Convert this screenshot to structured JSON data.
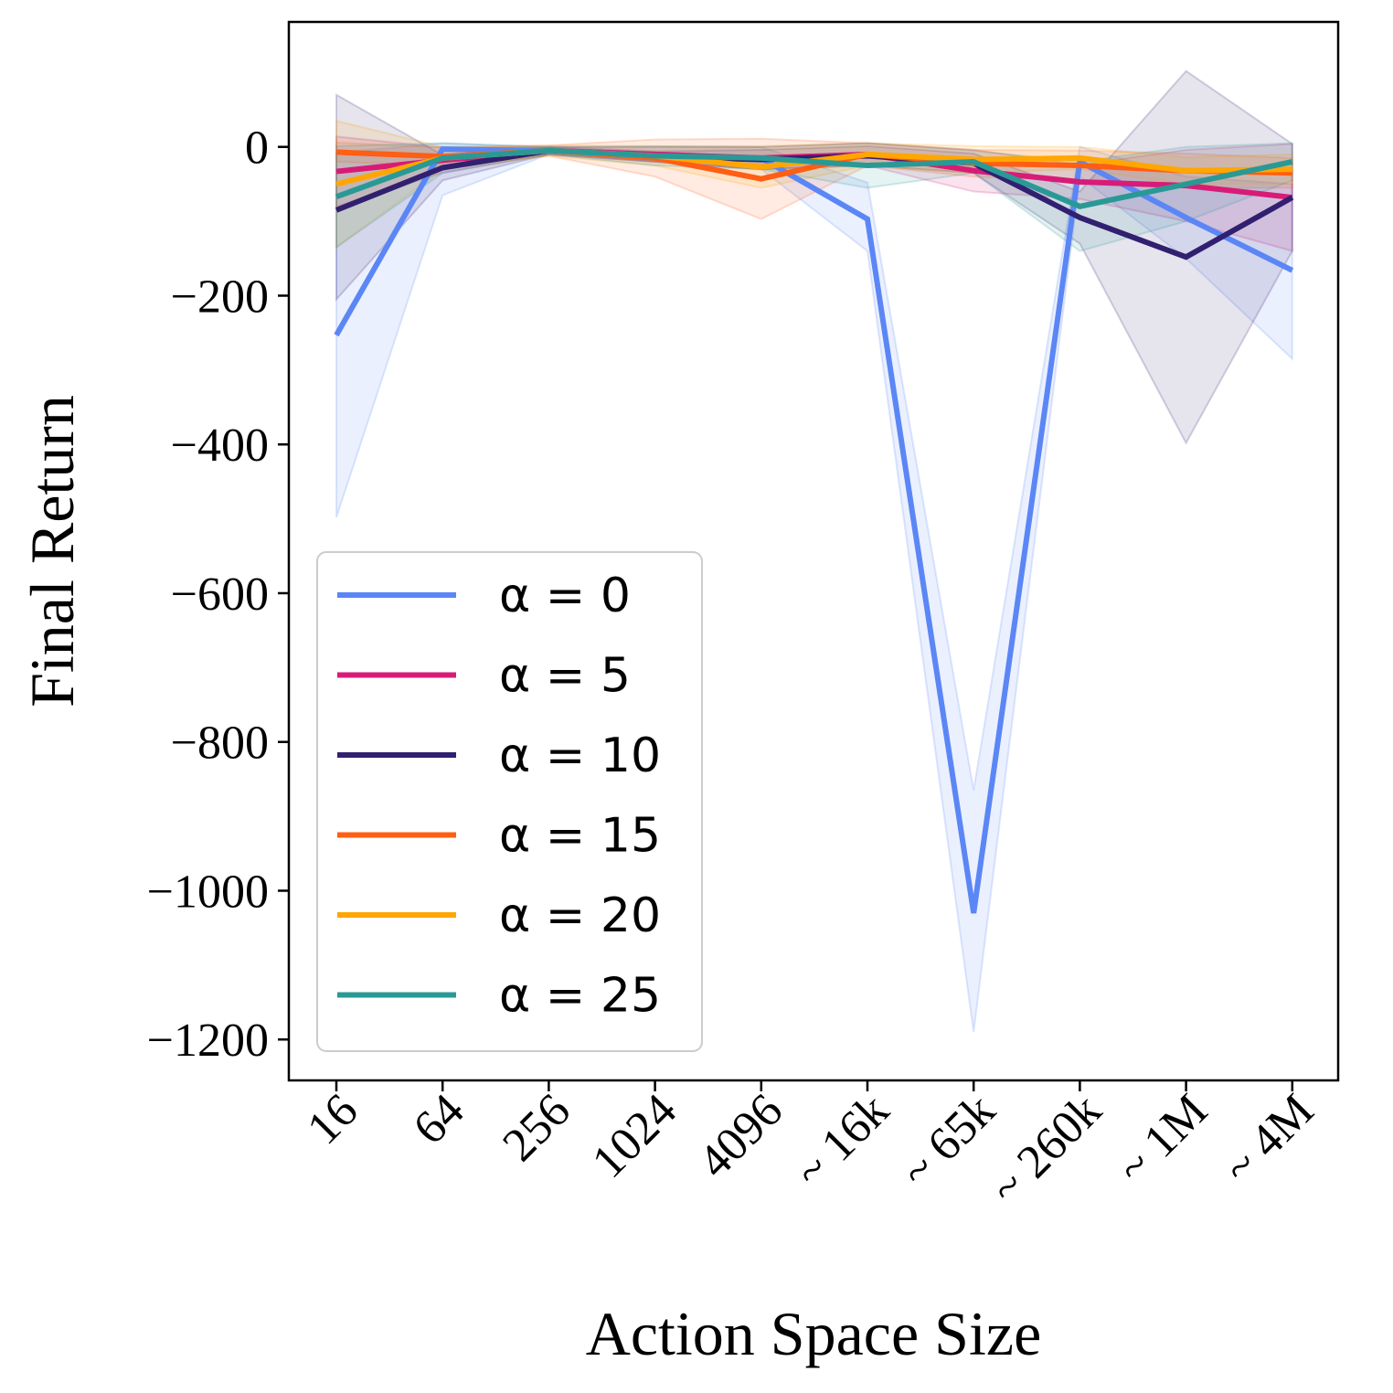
{
  "chart_data": {
    "type": "line",
    "title": "",
    "xlabel": "Action Space Size",
    "ylabel": "Final Return",
    "categories": [
      "16",
      "64",
      "256",
      "1024",
      "4096",
      "~ 16k",
      "~ 65k",
      "~ 260k",
      "~ 1M",
      "~ 4M"
    ],
    "ylim": [
      -1255,
      168
    ],
    "yticks": [
      0,
      -200,
      -400,
      -600,
      -800,
      -1000,
      -1200
    ],
    "ytick_labels": [
      "0",
      "−200",
      "−400",
      "−600",
      "−800",
      "−1000",
      "−1200"
    ],
    "grid": false,
    "legend_position": "lower-left",
    "series": [
      {
        "name": "α = 0",
        "color": "#5b86f5",
        "values": [
          -253,
          -3,
          -5,
          -10,
          -15,
          -97,
          -1030,
          -20,
          -95,
          -166
        ],
        "lower": [
          -498,
          -65,
          -10,
          -20,
          -30,
          -140,
          -1190,
          -40,
          -150,
          -285
        ],
        "upper": [
          -8,
          5,
          0,
          0,
          0,
          -48,
          -865,
          0,
          -40,
          -50
        ]
      },
      {
        "name": "α = 5",
        "color": "#d81b77",
        "values": [
          -33,
          -18,
          -5,
          -10,
          -15,
          -10,
          -32,
          -47,
          -52,
          -68
        ],
        "lower": [
          -80,
          -35,
          -10,
          -20,
          -30,
          -25,
          -60,
          -70,
          -100,
          -140
        ],
        "upper": [
          14,
          -1,
          0,
          0,
          0,
          5,
          -4,
          -24,
          -4,
          4
        ]
      },
      {
        "name": "α = 10",
        "color": "#31206f",
        "values": [
          -85,
          -28,
          -5,
          -13,
          -17,
          -12,
          -22,
          -95,
          -148,
          -68
        ],
        "lower": [
          -205,
          -45,
          -10,
          -20,
          -30,
          -25,
          -35,
          -130,
          -398,
          -140
        ],
        "upper": [
          70,
          -11,
          0,
          -6,
          -4,
          1,
          -9,
          -60,
          102,
          4
        ]
      },
      {
        "name": "α = 15",
        "color": "#ff5e13",
        "values": [
          -7,
          -13,
          -5,
          -15,
          -43,
          -10,
          -22,
          -25,
          -32,
          -35
        ],
        "lower": [
          -20,
          -25,
          -12,
          -40,
          -97,
          -25,
          -40,
          -45,
          -55,
          -55
        ],
        "upper": [
          6,
          -1,
          2,
          10,
          11,
          5,
          -4,
          -5,
          -9,
          -15
        ]
      },
      {
        "name": "α = 20",
        "color": "#ffa600",
        "values": [
          -50,
          -15,
          -5,
          -12,
          -27,
          -10,
          -17,
          -15,
          -32,
          -30
        ],
        "lower": [
          -135,
          -30,
          -12,
          -25,
          -55,
          -25,
          -35,
          -30,
          -50,
          -50
        ],
        "upper": [
          35,
          0,
          2,
          1,
          1,
          5,
          1,
          0,
          -14,
          -10
        ]
      },
      {
        "name": "α = 25",
        "color": "#2a9996",
        "values": [
          -67,
          -15,
          -5,
          -12,
          -15,
          -25,
          -20,
          -80,
          -50,
          -20
        ],
        "lower": [
          -135,
          -35,
          -10,
          -25,
          -30,
          -55,
          -35,
          -140,
          -100,
          -45
        ],
        "upper": [
          1,
          5,
          0,
          1,
          0,
          5,
          -5,
          -20,
          0,
          5
        ]
      }
    ]
  }
}
